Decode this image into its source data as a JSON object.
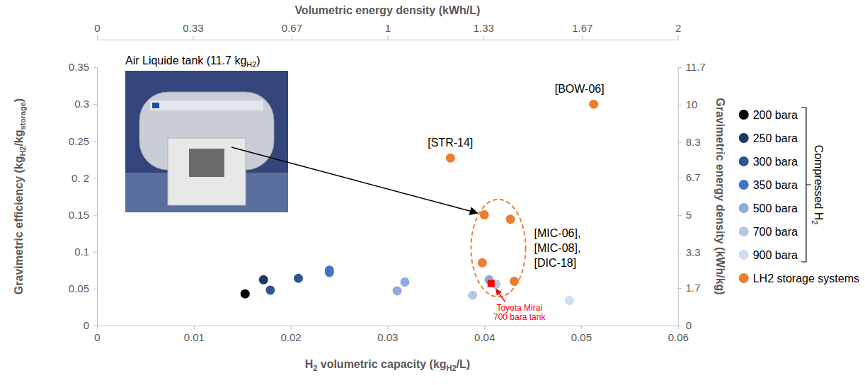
{
  "chart_data": {
    "type": "scatter",
    "x_label": [
      "H",
      "2",
      " volumetric capacity  (kg",
      "H2",
      "/L)"
    ],
    "y_label": [
      "Gravimetric efficiency  (kg",
      "H2",
      "/kg",
      "storage",
      ")"
    ],
    "x2_label": [
      "Volumetric energy density (kWh/L)"
    ],
    "y2_label": [
      "Gravimetric energy density (kWh/kg)"
    ],
    "xlim": [
      0,
      0.06
    ],
    "xticks": [
      0,
      0.01,
      0.02,
      0.03,
      0.04,
      0.05,
      0.06
    ],
    "ylim": [
      0,
      0.35
    ],
    "yticks": [
      0,
      0.05,
      0.1,
      0.15,
      {
        "value": 0.2,
        "label": "0. 2"
      },
      0.25,
      0.3,
      0.35
    ],
    "x2lim": [
      0,
      2
    ],
    "x2ticks": [
      0,
      0.33,
      0.67,
      1,
      1.33,
      1.67,
      2
    ],
    "y2lim": [
      0,
      11.7
    ],
    "y2ticks": [
      0,
      1.7,
      3.3,
      5,
      6.7,
      8.3,
      10,
      11.7
    ],
    "grid": false,
    "legend": "right",
    "marker": "circle",
    "legend_group": {
      "label": [
        "Compressed H",
        "2"
      ]
    },
    "series": [
      {
        "name": "200 bara",
        "color": "#000000",
        "x": [
          0.0153
        ],
        "values": [
          0.043
        ]
      },
      {
        "name": "250 bara",
        "color": "#1f3864",
        "x": [
          0.0172
        ],
        "values": [
          0.062
        ]
      },
      {
        "name": "300 bara",
        "color": "#2f5597",
        "x": [
          0.0179,
          0.0208
        ],
        "values": [
          0.048,
          0.064
        ]
      },
      {
        "name": "350 bara",
        "color": "#4472c4",
        "x": [
          0.024,
          0.024
        ],
        "values": [
          0.075,
          0.072
        ]
      },
      {
        "name": "500 bara",
        "color": "#8faadc",
        "x": [
          0.031,
          0.0318,
          0.0405
        ],
        "values": [
          0.047,
          0.059,
          0.062
        ]
      },
      {
        "name": "700 bara",
        "color": "#b4c7e7",
        "x": [
          0.0388,
          0.0412
        ],
        "values": [
          0.041,
          0.056
        ]
      },
      {
        "name": "900 bara",
        "color": "#d0dcf0",
        "x": [
          0.0488
        ],
        "values": [
          0.034
        ]
      },
      {
        "name": "LH2 storage systems",
        "color": "#ed7d31",
        "x": [
          0.0513,
          0.0365,
          0.04,
          0.0427,
          0.0398,
          0.0431
        ],
        "values": [
          0.3,
          0.227,
          0.15,
          0.144,
          0.085,
          0.06
        ],
        "labels": [
          "[BOW-06]",
          "[STR-14]",
          null,
          null,
          null,
          null
        ]
      }
    ],
    "group_label": [
      "[MIC-06],",
      "[MIC-08],",
      "[DIC-18]"
    ],
    "photo_label": [
      "Air Liquide tank (11.7 kg",
      "H2",
      ")"
    ],
    "highlight": {
      "label": [
        "Toyota Mirai",
        "700 bara tank"
      ],
      "x": 0.0407,
      "y": 0.057,
      "color": "#ff0000",
      "marker": "square"
    }
  }
}
